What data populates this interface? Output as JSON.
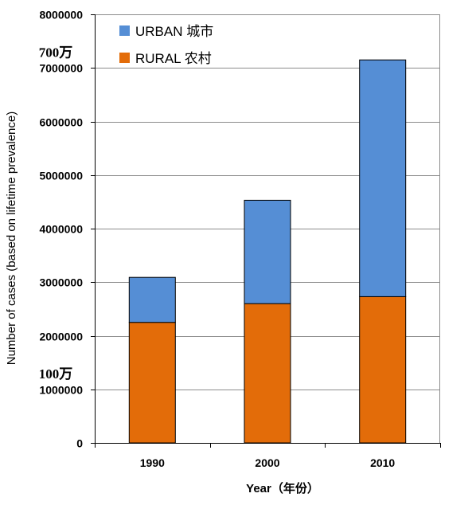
{
  "chart_data": {
    "type": "bar",
    "stacked": true,
    "categories": [
      "1990",
      "2000",
      "2010"
    ],
    "series": [
      {
        "name": "RURAL 农村",
        "color": "#E36C09",
        "values": [
          2250000,
          2600000,
          2730000
        ]
      },
      {
        "name": "URBAN 城市",
        "color": "#558ED5",
        "values": [
          840000,
          1930000,
          4420000
        ]
      }
    ],
    "xlabel": "Year（年份）",
    "ylabel": "Number of cases (based on lifetime prevalence)",
    "ylim": [
      0,
      8000000
    ],
    "yticks": [
      0,
      1000000,
      2000000,
      3000000,
      4000000,
      5000000,
      6000000,
      7000000,
      8000000
    ],
    "ytick_labels": [
      "0",
      "1000000",
      "2000000",
      "3000000",
      "4000000",
      "5000000",
      "6000000",
      "7000000",
      "8000000"
    ],
    "grid": true,
    "legend_position": "top-left",
    "legend": [
      {
        "label": "URBAN 城市",
        "color": "#558ED5"
      },
      {
        "label": "RURAL 农村",
        "color": "#E36C09"
      }
    ],
    "annotations": [
      {
        "text": "700万",
        "y": 7000000
      },
      {
        "text": "100万",
        "y": 1000000
      }
    ]
  }
}
